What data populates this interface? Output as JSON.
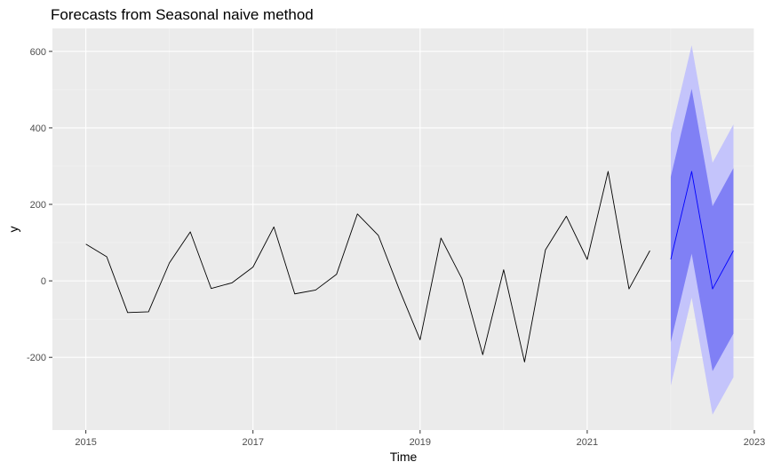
{
  "chart_data": {
    "type": "line",
    "title": "Forecasts from Seasonal naive method",
    "xlabel": "Time",
    "ylabel": "y",
    "xlim": [
      2014.6,
      2023.0
    ],
    "ylim": [
      -390,
      660
    ],
    "x_ticks": [
      2015,
      2017,
      2019,
      2021,
      2023
    ],
    "x_tick_labels": [
      "2015",
      "2017",
      "2019",
      "2021",
      "2023"
    ],
    "y_ticks": [
      -200,
      0,
      200,
      400,
      600
    ],
    "y_tick_labels": [
      "-200",
      "0",
      "200",
      "400",
      "600"
    ],
    "grid": true,
    "series": [
      {
        "role": "observed",
        "x": [
          2015.0,
          2015.25,
          2015.5,
          2015.75,
          2016.0,
          2016.25,
          2016.5,
          2016.75,
          2017.0,
          2017.25,
          2017.5,
          2017.75,
          2018.0,
          2018.25,
          2018.5,
          2018.75,
          2019.0,
          2019.25,
          2019.5,
          2019.75,
          2020.0,
          2020.25,
          2020.5,
          2020.75,
          2021.0,
          2021.25,
          2021.5,
          2021.75
        ],
        "values": [
          96,
          63,
          -83,
          -81,
          47,
          128,
          -20,
          -5,
          36,
          141,
          -34,
          -24,
          17,
          175,
          119,
          -22,
          -154,
          112,
          6,
          -193,
          29,
          -212,
          81,
          169,
          56,
          286,
          -21,
          79
        ]
      },
      {
        "role": "forecast",
        "x": [
          2022.0,
          2022.25,
          2022.5,
          2022.75
        ],
        "values": [
          56,
          286,
          -21,
          79
        ],
        "lower_80": [
          -160,
          71,
          -236,
          -138
        ],
        "upper_80": [
          272,
          502,
          195,
          295
        ],
        "lower_95": [
          -274,
          -44,
          -350,
          -252
        ],
        "upper_95": [
          386,
          616,
          309,
          409
        ]
      }
    ]
  },
  "colors": {
    "panel_background": "#ebebeb",
    "grid_major": "#ffffff",
    "grid_minor": "#f4f4f4",
    "observed_line": "#000000",
    "forecast_line": "#0000ff",
    "band_80": "#8080f5",
    "band_95": "#c4c4fb",
    "tick_label": "#4d4d4d"
  }
}
